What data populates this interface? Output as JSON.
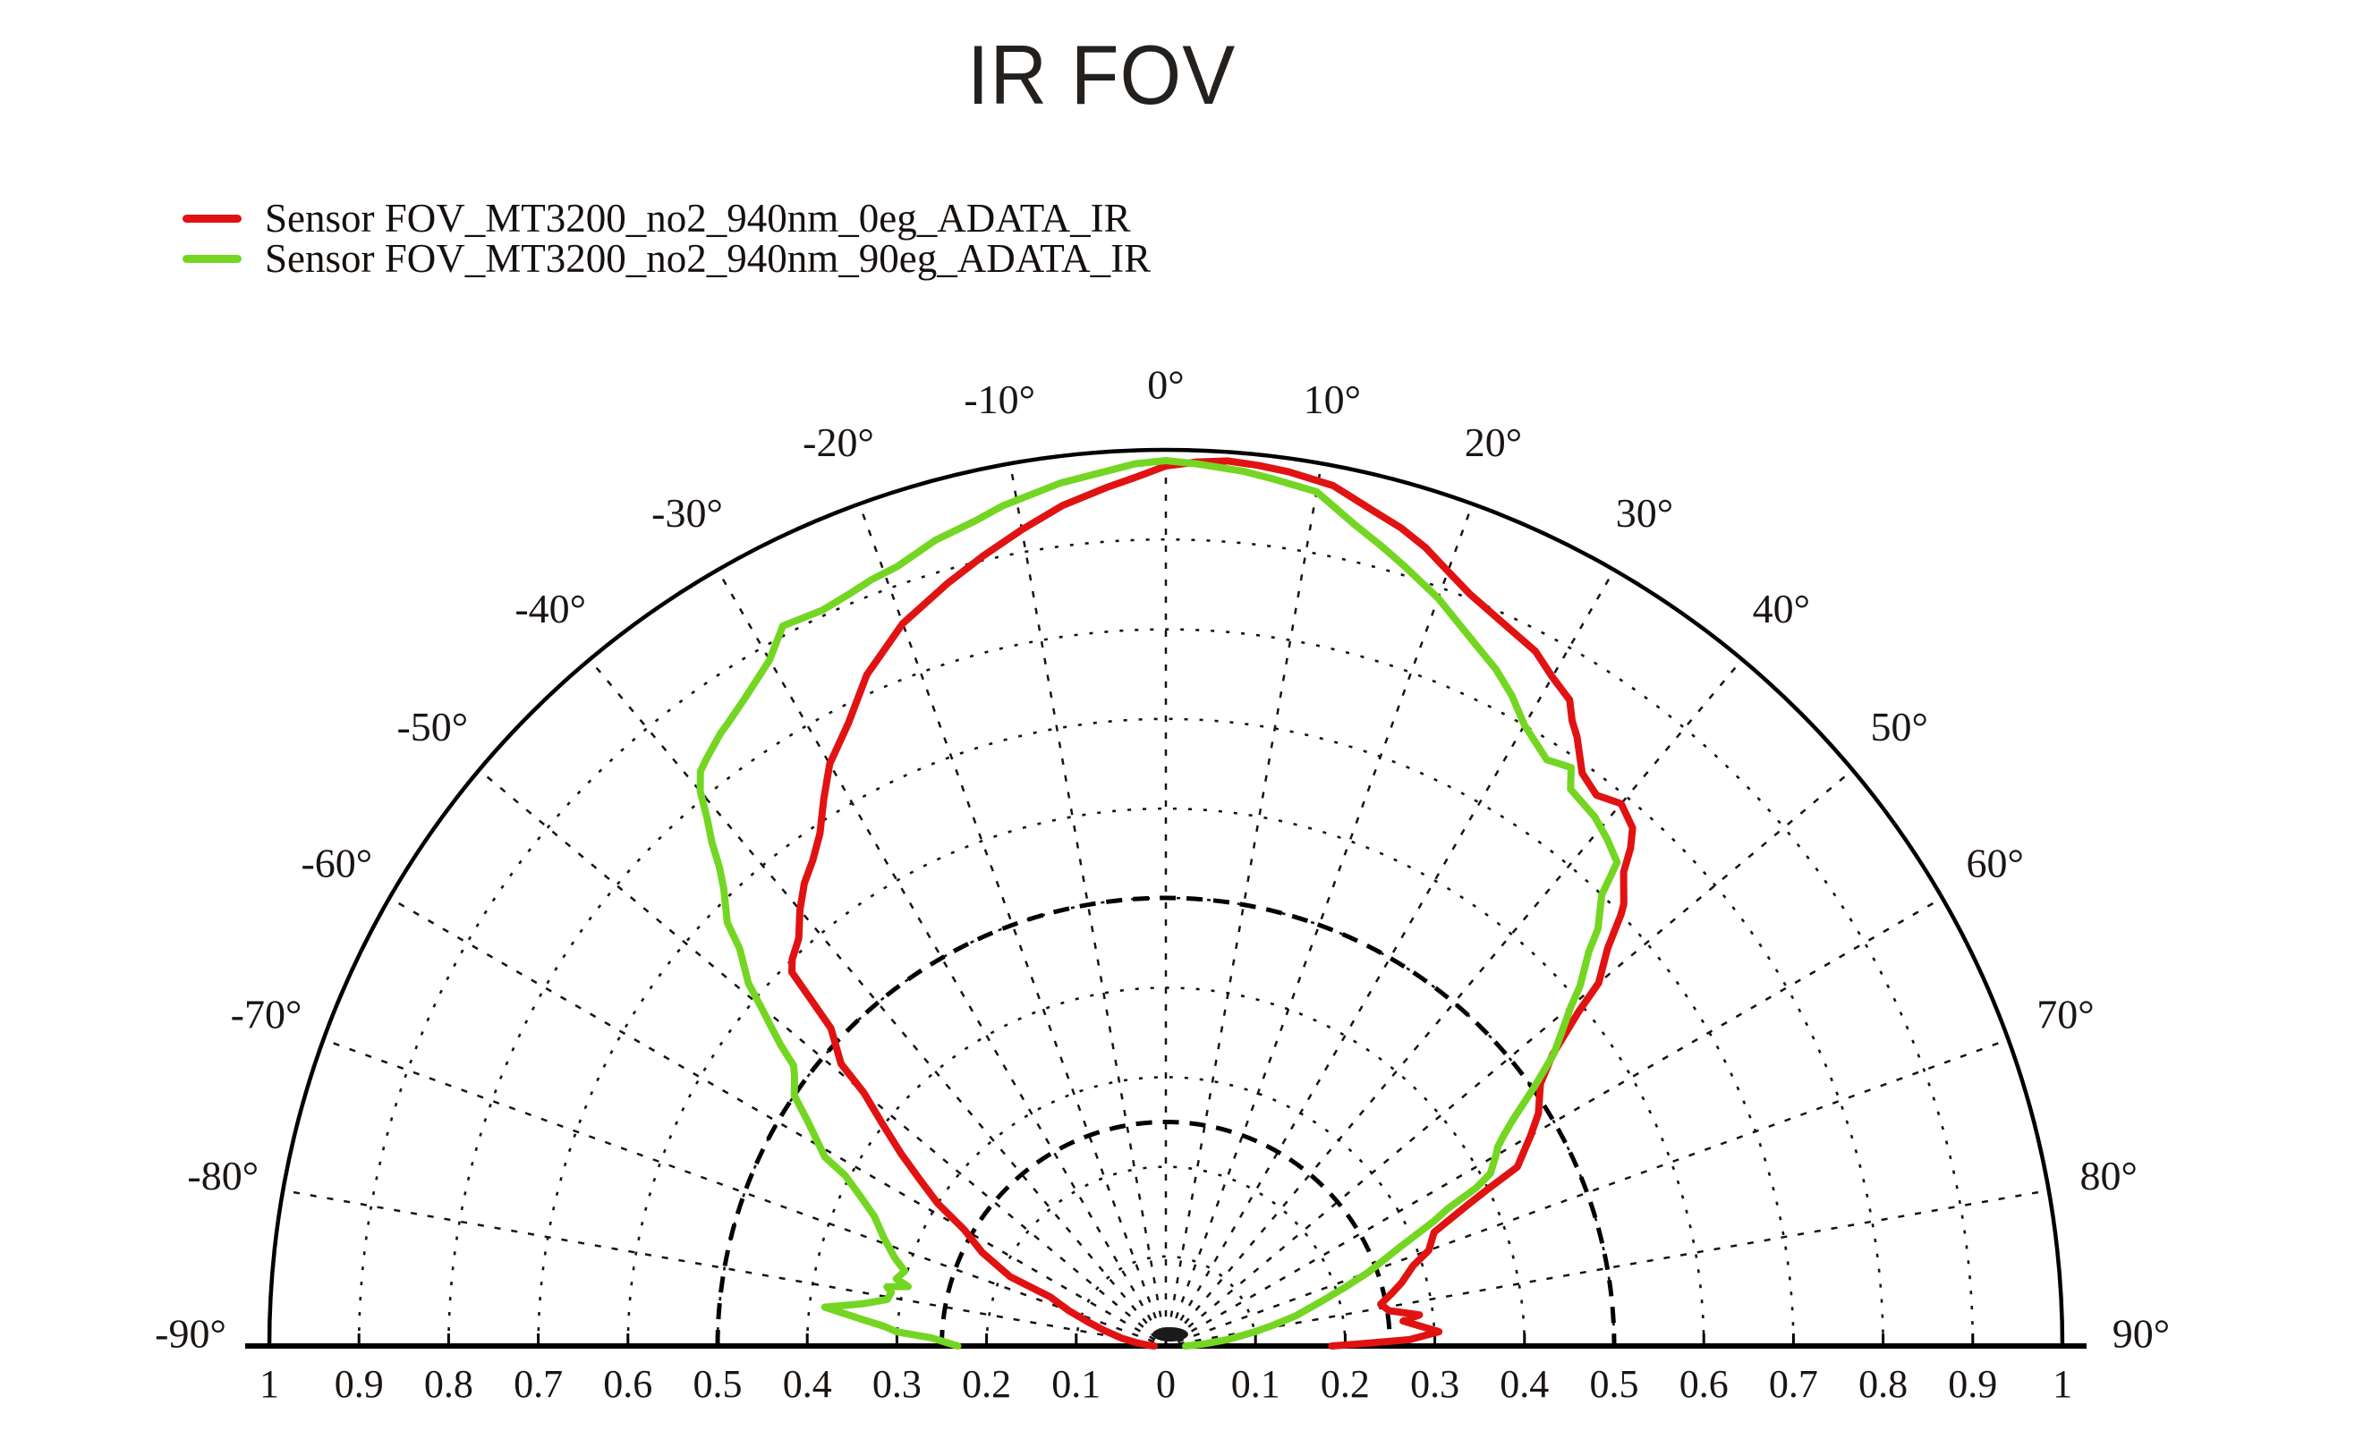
{
  "chart_data": {
    "type": "line",
    "polar": true,
    "title": "IR FOV",
    "angle_unit": "degrees",
    "angle_range": [
      -90,
      90
    ],
    "radial_range": [
      0,
      1
    ],
    "grid": {
      "arc_step": 0.1,
      "bold_arcs": [
        0.25,
        0.5
      ],
      "radial_step_deg": 10,
      "outer_rim": "solid",
      "style": "dotted"
    },
    "legend_position": "top-left",
    "angle_ticks": [
      {
        "value": -90,
        "label": "-90°"
      },
      {
        "value": -80,
        "label": "-80°"
      },
      {
        "value": -70,
        "label": "-70°"
      },
      {
        "value": -60,
        "label": "-60°"
      },
      {
        "value": -50,
        "label": "-50°"
      },
      {
        "value": -40,
        "label": "-40°"
      },
      {
        "value": -30,
        "label": "-30°"
      },
      {
        "value": -20,
        "label": "-20°"
      },
      {
        "value": -10,
        "label": "-10°"
      },
      {
        "value": 0,
        "label": "0°"
      },
      {
        "value": 10,
        "label": "10°"
      },
      {
        "value": 20,
        "label": "20°"
      },
      {
        "value": 30,
        "label": "30°"
      },
      {
        "value": 40,
        "label": "40°"
      },
      {
        "value": 50,
        "label": "50°"
      },
      {
        "value": 60,
        "label": "60°"
      },
      {
        "value": 70,
        "label": "70°"
      },
      {
        "value": 80,
        "label": "80°"
      },
      {
        "value": 90,
        "label": "90°"
      }
    ],
    "radial_ticks": [
      {
        "pos": -1.0,
        "label": "1"
      },
      {
        "pos": -0.9,
        "label": "0.9"
      },
      {
        "pos": -0.8,
        "label": "0.8"
      },
      {
        "pos": -0.7,
        "label": "0.7"
      },
      {
        "pos": -0.6,
        "label": "0.6"
      },
      {
        "pos": -0.5,
        "label": "0.5"
      },
      {
        "pos": -0.4,
        "label": "0.4"
      },
      {
        "pos": -0.3,
        "label": "0.3"
      },
      {
        "pos": -0.2,
        "label": "0.2"
      },
      {
        "pos": -0.1,
        "label": "0.1"
      },
      {
        "pos": 0.0,
        "label": "0"
      },
      {
        "pos": 0.1,
        "label": "0.1"
      },
      {
        "pos": 0.2,
        "label": "0.2"
      },
      {
        "pos": 0.3,
        "label": "0.3"
      },
      {
        "pos": 0.4,
        "label": "0.4"
      },
      {
        "pos": 0.5,
        "label": "0.5"
      },
      {
        "pos": 0.6,
        "label": "0.6"
      },
      {
        "pos": 0.7,
        "label": "0.7"
      },
      {
        "pos": 0.8,
        "label": "0.8"
      },
      {
        "pos": 0.9,
        "label": "0.9"
      },
      {
        "pos": 1.0,
        "label": "1"
      }
    ],
    "series": [
      {
        "name": "Sensor FOV_MT3200_no2_940nm_0eg_ADATA_IR",
        "color": "#e11212",
        "points": [
          [
            -90,
            0.013
          ],
          [
            -87,
            0.02
          ],
          [
            -84,
            0.032
          ],
          [
            -80,
            0.05
          ],
          [
            -76,
            0.07
          ],
          [
            -73,
            0.09
          ],
          [
            -70,
            0.115
          ],
          [
            -67,
            0.14
          ],
          [
            -66,
            0.19
          ],
          [
            -63,
            0.23
          ],
          [
            -60,
            0.26
          ],
          [
            -58,
            0.3
          ],
          [
            -56,
            0.33
          ],
          [
            -54,
            0.365
          ],
          [
            -52,
            0.4
          ],
          [
            -50,
            0.44
          ],
          [
            -49,
            0.48
          ],
          [
            -46.5,
            0.515
          ],
          [
            -45,
            0.59
          ],
          [
            -44,
            0.6
          ],
          [
            -42,
            0.612
          ],
          [
            -40,
            0.635
          ],
          [
            -38,
            0.655
          ],
          [
            -36,
            0.67
          ],
          [
            -34,
            0.69
          ],
          [
            -32,
            0.72
          ],
          [
            -30,
            0.75
          ],
          [
            -27,
            0.78
          ],
          [
            -24,
            0.82
          ],
          [
            -20,
            0.858
          ],
          [
            -16,
            0.885
          ],
          [
            -13,
            0.905
          ],
          [
            -10,
            0.925
          ],
          [
            -7,
            0.945
          ],
          [
            -4,
            0.96
          ],
          [
            -2,
            0.97
          ],
          [
            0,
            0.982
          ],
          [
            2,
            0.987
          ],
          [
            4,
            0.99
          ],
          [
            6,
            0.988
          ],
          [
            8,
            0.985
          ],
          [
            11,
            0.978
          ],
          [
            14,
            0.96
          ],
          [
            16,
            0.95
          ],
          [
            18,
            0.937
          ],
          [
            20,
            0.92
          ],
          [
            22,
            0.905
          ],
          [
            25,
            0.89
          ],
          [
            28,
            0.878
          ],
          [
            30,
            0.862
          ],
          [
            32,
            0.85
          ],
          [
            33,
            0.832
          ],
          [
            34,
            0.82
          ],
          [
            36,
            0.79
          ],
          [
            38,
            0.78
          ],
          [
            40,
            0.79
          ],
          [
            42,
            0.778
          ],
          [
            43,
            0.76
          ],
          [
            44,
            0.735
          ],
          [
            46,
            0.71
          ],
          [
            46.5,
            0.7
          ],
          [
            48,
            0.663
          ],
          [
            50,
            0.63
          ],
          [
            51,
            0.592
          ],
          [
            53,
            0.54
          ],
          [
            55,
            0.51
          ],
          [
            58,
            0.49
          ],
          [
            60,
            0.47
          ],
          [
            63,
            0.44
          ],
          [
            64,
            0.4
          ],
          [
            65,
            0.37
          ],
          [
            67,
            0.325
          ],
          [
            70,
            0.312
          ],
          [
            72,
            0.29
          ],
          [
            75,
            0.272
          ],
          [
            77,
            0.258
          ],
          [
            79,
            0.244
          ],
          [
            81,
            0.252
          ],
          [
            83,
            0.285
          ],
          [
            84,
            0.266
          ],
          [
            87,
            0.305
          ],
          [
            88.5,
            0.272
          ],
          [
            89.3,
            0.22
          ],
          [
            90,
            0.185
          ]
        ]
      },
      {
        "name": "Sensor FOV_MT3200_no2_940nm_90eg_ADATA_IR",
        "color": "#74d622",
        "points": [
          [
            -90,
            0.232
          ],
          [
            -88,
            0.262
          ],
          [
            -87,
            0.3
          ],
          [
            -86,
            0.315
          ],
          [
            -85,
            0.34
          ],
          [
            -83.5,
            0.383
          ],
          [
            -82,
            0.34
          ],
          [
            -80.5,
            0.315
          ],
          [
            -79,
            0.312
          ],
          [
            -78,
            0.318
          ],
          [
            -77,
            0.295
          ],
          [
            -76,
            0.31
          ],
          [
            -74,
            0.303
          ],
          [
            -72,
            0.318
          ],
          [
            -69,
            0.337
          ],
          [
            -66,
            0.356
          ],
          [
            -64,
            0.378
          ],
          [
            -62,
            0.405
          ],
          [
            -61,
            0.435
          ],
          [
            -58,
            0.47
          ],
          [
            -56,
            0.5
          ],
          [
            -54,
            0.512
          ],
          [
            -53,
            0.52
          ],
          [
            -52,
            0.545
          ],
          [
            -51,
            0.567
          ],
          [
            -50,
            0.59
          ],
          [
            -49,
            0.617
          ],
          [
            -47,
            0.65
          ],
          [
            -46,
            0.68
          ],
          [
            -44,
            0.71
          ],
          [
            -43,
            0.73
          ],
          [
            -42,
            0.757
          ],
          [
            -41,
            0.78
          ],
          [
            -40,
            0.808
          ],
          [
            -39,
            0.825
          ],
          [
            -38,
            0.832
          ],
          [
            -36,
            0.845
          ],
          [
            -35,
            0.85
          ],
          [
            -33,
            0.862
          ],
          [
            -30,
            0.884
          ],
          [
            -28,
            0.91
          ],
          [
            -25,
            0.906
          ],
          [
            -23,
            0.91
          ],
          [
            -21,
            0.916
          ],
          [
            -19,
            0.92
          ],
          [
            -16,
            0.935
          ],
          [
            -13,
            0.945
          ],
          [
            -11,
            0.955
          ],
          [
            -7,
            0.97
          ],
          [
            -4,
            0.978
          ],
          [
            -2,
            0.985
          ],
          [
            0,
            0.988
          ],
          [
            2,
            0.985
          ],
          [
            5,
            0.98
          ],
          [
            7,
            0.975
          ],
          [
            10,
            0.968
          ],
          [
            13,
            0.94
          ],
          [
            15,
            0.925
          ],
          [
            17,
            0.91
          ],
          [
            20,
            0.888
          ],
          [
            23,
            0.862
          ],
          [
            26,
            0.84
          ],
          [
            28,
            0.822
          ],
          [
            30,
            0.8
          ],
          [
            33,
            0.78
          ],
          [
            35,
            0.788
          ],
          [
            36,
            0.768
          ],
          [
            37,
            0.765
          ],
          [
            39,
            0.76
          ],
          [
            41,
            0.75
          ],
          [
            43,
            0.738
          ],
          [
            44,
            0.7
          ],
          [
            46,
            0.67
          ],
          [
            47,
            0.645
          ],
          [
            49,
            0.612
          ],
          [
            50,
            0.59
          ],
          [
            53,
            0.542
          ],
          [
            55,
            0.5
          ],
          [
            57,
            0.46
          ],
          [
            58,
            0.445
          ],
          [
            59,
            0.432
          ],
          [
            60,
            0.425
          ],
          [
            62,
            0.41
          ],
          [
            63,
            0.388
          ],
          [
            64,
            0.35
          ],
          [
            65,
            0.33
          ],
          [
            67,
            0.285
          ],
          [
            70,
            0.24
          ],
          [
            72,
            0.208
          ],
          [
            74,
            0.18
          ],
          [
            77,
            0.148
          ],
          [
            79,
            0.122
          ],
          [
            81,
            0.1
          ],
          [
            84,
            0.07
          ],
          [
            87,
            0.042
          ],
          [
            90,
            0.022
          ]
        ]
      }
    ]
  }
}
